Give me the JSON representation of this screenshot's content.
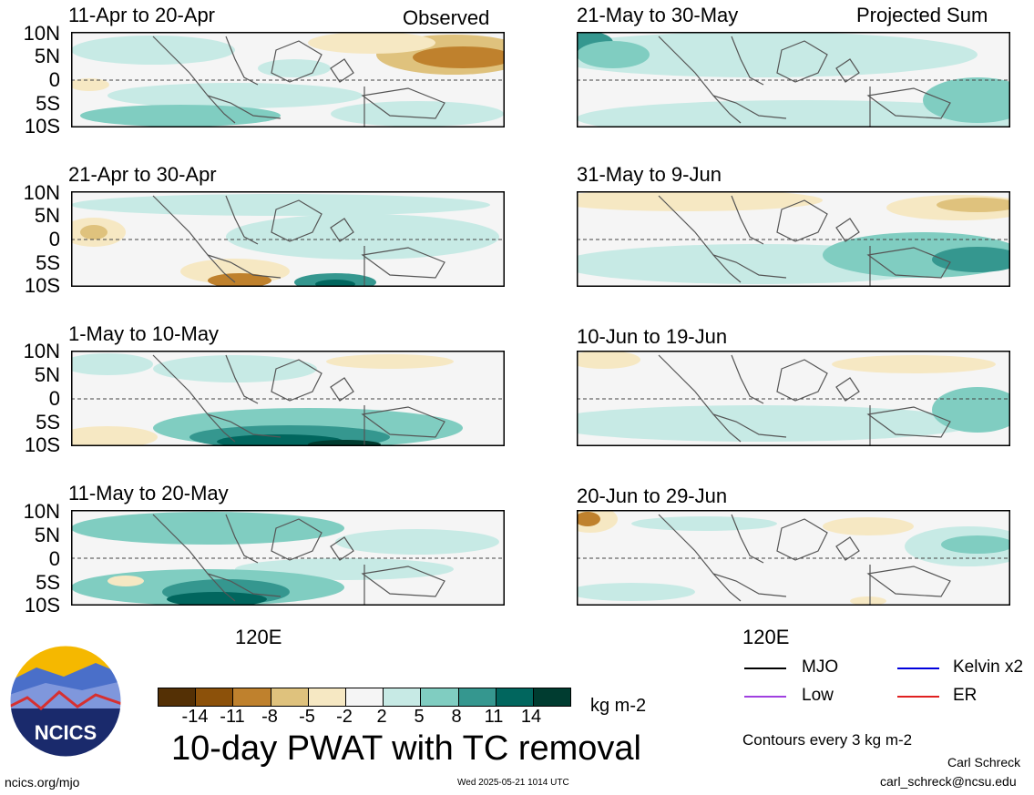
{
  "header": {
    "left_tag": "Observed",
    "right_tag": "Projected Sum"
  },
  "panels": [
    {
      "title": "11-Apr to 20-Apr"
    },
    {
      "title": "21-Apr to 30-Apr"
    },
    {
      "title": "1-May to 10-May"
    },
    {
      "title": "11-May to 20-May"
    },
    {
      "title": "21-May to 30-May"
    },
    {
      "title": "31-May to 9-Jun"
    },
    {
      "title": "10-Jun to 19-Jun"
    },
    {
      "title": "20-Jun to 29-Jun"
    }
  ],
  "axes": {
    "lat_ticks": [
      "10N",
      "5N",
      "0",
      "5S",
      "10S"
    ],
    "lon_tick": "120E"
  },
  "colorbar": {
    "ticks": [
      "-14",
      "-11",
      "-8",
      "-5",
      "-2",
      "2",
      "5",
      "8",
      "11",
      "14"
    ],
    "units": "kg m-2",
    "colors": [
      "#543005",
      "#8c510a",
      "#bf812d",
      "#dfc27d",
      "#f6e8c3",
      "#f5f5f5",
      "#c7eae5",
      "#80cdc1",
      "#35978f",
      "#01665e",
      "#003c30"
    ]
  },
  "main_title": "10-day PWAT with TC removal",
  "legend": {
    "items": [
      {
        "label": "MJO",
        "color": "#000000"
      },
      {
        "label": "Kelvin x2",
        "color": "#0000dd"
      },
      {
        "label": "Low",
        "color": "#a040e0"
      },
      {
        "label": "ER",
        "color": "#e02020"
      }
    ],
    "contours_note": "Contours every 3 kg m-2"
  },
  "footer": {
    "site": "ncics.org/mjo",
    "timestamp": "Wed 2025-05-21 1014 UTC",
    "author": "Carl Schreck",
    "email": "carl_schreck@ncsu.edu"
  },
  "logo": {
    "text": "NCICS"
  }
}
